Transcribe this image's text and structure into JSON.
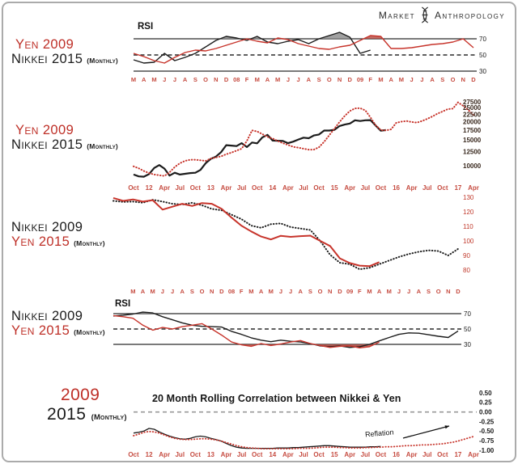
{
  "frame": {
    "background": "#FFFFFF",
    "border_color": "#ABABAB"
  },
  "logo": {
    "left": "Market",
    "right": "Anthropology",
    "icon": "dna-helix-icon"
  },
  "colors": {
    "red_text": "#BE2F27",
    "red_line": "#C7342B",
    "black_line": "#1C1C1C",
    "month_red": "#C64C41",
    "axis_dark": "#3A2A1F",
    "axis_black": "#1A1A1A",
    "axis_red": "#C0392B",
    "gray_fill": "#8A8A8A",
    "red_fill": "#B5483E",
    "zero_dash_gray": "#999999"
  },
  "chart_data": [
    {
      "id": "rsi-top",
      "type": "line",
      "title": "RSI",
      "legend": [
        {
          "text": "Yen 2009",
          "color": "red",
          "suffix": ""
        },
        {
          "text": "Nikkei 2015",
          "color": "black",
          "suffix": "(Monthly)"
        }
      ],
      "x_slots": 34,
      "label_every": 1,
      "label_offset": 0,
      "x_labels": [
        "M",
        "A",
        "M",
        "J",
        "J",
        "A",
        "S",
        "O",
        "N",
        "D",
        "08",
        "F",
        "M",
        "A",
        "M",
        "J",
        "J",
        "A",
        "S",
        "O",
        "N",
        "D",
        "09",
        "F",
        "M",
        "A",
        "M",
        "J",
        "J",
        "A",
        "S",
        "O",
        "N",
        "D"
      ],
      "y_ticks": [
        "70",
        "50",
        "30"
      ],
      "ylim": [
        25,
        80
      ],
      "grid": false,
      "legend_position": "left",
      "ref_lines": [
        {
          "value": 70,
          "style": "solid"
        },
        {
          "value": 50,
          "style": "dashed"
        },
        {
          "value": 30,
          "style": "solid"
        }
      ],
      "series": [
        {
          "name": "Nikkei 2015 RSI",
          "color_key": "black_line",
          "line": "solid",
          "values": [
            44,
            40,
            41,
            52,
            43,
            47,
            52,
            60,
            68,
            73,
            71,
            68,
            73,
            66,
            64,
            67,
            69,
            64,
            70,
            74,
            78,
            72,
            52,
            56
          ]
        },
        {
          "name": "Yen 2009 RSI",
          "color_key": "red_line",
          "line": "solid",
          "values": [
            52,
            48,
            43,
            40,
            47,
            53,
            56,
            55,
            58,
            62,
            66,
            70,
            67,
            65,
            71,
            69,
            64,
            61,
            58,
            57,
            60,
            62,
            68,
            74,
            73,
            58,
            58,
            59,
            61,
            63,
            64,
            66,
            70,
            59
          ]
        }
      ],
      "fills": [
        {
          "series": 0,
          "mode": "above",
          "at": 70,
          "color_key": "gray_fill"
        },
        {
          "series": 1,
          "mode": "above",
          "at": 70,
          "color_key": "red_fill"
        }
      ]
    },
    {
      "id": "price-overlay",
      "type": "line",
      "title": "",
      "legend": [
        {
          "text": "Yen 2009",
          "color": "red",
          "suffix": ""
        },
        {
          "text": "Nikkei 2015",
          "color": "black",
          "suffix": "(Monthly)"
        }
      ],
      "x_slots": 67,
      "label_every": 3,
      "label_offset": 0,
      "x_labels": [
        "Oct",
        "12",
        "Apr",
        "Jul",
        "Oct",
        "13",
        "Apr",
        "Jul",
        "Oct",
        "14",
        "Apr",
        "Jul",
        "Oct",
        "15",
        "Apr",
        "Jul",
        "Oct",
        "16",
        "Apr",
        "Jul",
        "Oct",
        "17",
        "Apr"
      ],
      "y_ticks": [
        "27500",
        "25000",
        "22500",
        "20000",
        "17500",
        "15000",
        "12500",
        "10000"
      ],
      "ylim": [
        8000,
        28500
      ],
      "y_scale": "log",
      "grid": false,
      "legend_position": "left",
      "ref_lines": [],
      "series": [
        {
          "name": "Nikkei 2015",
          "color_key": "black_line",
          "line": "solid",
          "values": [
            8700,
            8450,
            8400,
            8750,
            9650,
            10100,
            9550,
            8550,
            8950,
            8700,
            8800,
            8900,
            8950,
            9350,
            10400,
            11150,
            11550,
            12400,
            13850,
            13750,
            13650,
            14300,
            13450,
            14450,
            14250,
            15650,
            16300,
            14900,
            14850,
            14800,
            14300,
            14650,
            15150,
            15600,
            15450,
            16150,
            16400,
            17450,
            17450,
            17650,
            18750,
            19200,
            19500,
            20550,
            20300,
            20550,
            20600,
            18900,
            17400,
            17600
          ]
        },
        {
          "name": "Yen 2009 (rescaled)",
          "color_key": "red_line",
          "line": "dotted",
          "values": [
            9900,
            9600,
            9200,
            8900,
            8700,
            8600,
            8500,
            9000,
            9800,
            10400,
            10800,
            11000,
            11000,
            10900,
            10800,
            11200,
            11400,
            11600,
            12000,
            12300,
            12700,
            13100,
            14800,
            17500,
            17200,
            16500,
            15800,
            15400,
            14800,
            14300,
            13900,
            13500,
            13300,
            13100,
            12900,
            12900,
            13400,
            14600,
            16200,
            18000,
            20000,
            22000,
            23800,
            24800,
            24900,
            24000,
            21500,
            19000,
            17600,
            17500,
            17800,
            19700,
            20100,
            20300,
            20000,
            19800,
            20300,
            21000,
            21800,
            22800,
            23600,
            24500,
            24700,
            27300,
            25800,
            24200,
            22300
          ]
        }
      ],
      "fills": []
    },
    {
      "id": "fx-overlay",
      "type": "line",
      "title": "",
      "legend": [
        {
          "text": "Nikkei 2009",
          "color": "black",
          "suffix": ""
        },
        {
          "text": "Yen 2015",
          "color": "red",
          "suffix": "(Monthly)"
        }
      ],
      "x_slots": 36,
      "label_every": 1,
      "label_offset": 2,
      "x_labels": [
        "M",
        "A",
        "M",
        "J",
        "J",
        "A",
        "S",
        "O",
        "N",
        "D",
        "08",
        "F",
        "M",
        "A",
        "M",
        "J",
        "J",
        "A",
        "S",
        "O",
        "N",
        "D",
        "09",
        "F",
        "M",
        "A",
        "M",
        "J",
        "J",
        "A",
        "S",
        "O",
        "N",
        "D"
      ],
      "y_ticks": [
        "130",
        "120",
        "110",
        "100",
        "90",
        "80"
      ],
      "ylim": [
        78,
        132
      ],
      "grid": false,
      "legend_position": "left",
      "ref_lines": [],
      "series": [
        {
          "name": "Nikkei 2009 (rescaled)",
          "color_key": "black_line",
          "line": "dotted",
          "values": [
            127.5,
            126.8,
            127.0,
            126.2,
            128.3,
            127.0,
            125.5,
            125.0,
            126.2,
            124.5,
            122.0,
            121.0,
            118.0,
            115.0,
            110.5,
            109.0,
            111.5,
            112.0,
            109.5,
            108.5,
            107.5,
            100.0,
            90.5,
            85.0,
            84.0,
            80.5,
            81.5,
            84.0,
            86.5,
            89.0,
            91.0,
            92.5,
            93.5,
            93.0,
            90.0,
            94.5
          ]
        },
        {
          "name": "Yen 2015",
          "color_key": "red_line",
          "line": "solid",
          "values": [
            129.5,
            127.5,
            128.5,
            127.0,
            128.0,
            121.5,
            123.5,
            125.5,
            124.0,
            126.0,
            125.5,
            122.0,
            116.0,
            110.5,
            106.5,
            103.0,
            101.0,
            103.5,
            102.8,
            103.3,
            103.6,
            100.0,
            96.5,
            88.0,
            84.8,
            83.0,
            82.6,
            85.4
          ]
        }
      ],
      "fills": []
    },
    {
      "id": "rsi-bottom",
      "type": "line",
      "title": "RSI",
      "legend": [
        {
          "text": "Nikkei 2009",
          "color": "black",
          "suffix": ""
        },
        {
          "text": "Yen 2015",
          "color": "red",
          "suffix": "(Monthly)"
        }
      ],
      "x_slots": 36,
      "label_every": 1,
      "label_offset": 2,
      "x_labels": [],
      "y_ticks": [
        "70",
        "50",
        "30"
      ],
      "ylim": [
        22,
        75
      ],
      "grid": false,
      "legend_position": "left",
      "ref_lines": [
        {
          "value": 70,
          "style": "solid"
        },
        {
          "value": 50,
          "style": "dashed"
        },
        {
          "value": 30,
          "style": "solid"
        }
      ],
      "series": [
        {
          "name": "Nikkei 2009 RSI",
          "color_key": "black_line",
          "line": "solid",
          "values": [
            67,
            68,
            69.5,
            72,
            71,
            66,
            62,
            58,
            55,
            53.5,
            53,
            52.5,
            47,
            43,
            38.5,
            35.5,
            33.5,
            35.5,
            34,
            33,
            31,
            28,
            27,
            28,
            26,
            27,
            30,
            34.5,
            39,
            43,
            45,
            44.5,
            42.5,
            40.5,
            39,
            47.5
          ]
        },
        {
          "name": "Yen 2015 RSI",
          "color_key": "red_line",
          "line": "solid",
          "values": [
            67.5,
            66,
            64,
            55,
            48.5,
            52,
            50,
            53,
            55,
            57,
            50,
            42,
            33,
            29.5,
            27.5,
            31,
            28.5,
            30.5,
            33,
            35,
            31,
            28.5,
            26,
            27.5,
            28,
            25.5,
            27,
            33
          ]
        }
      ],
      "fills": [
        {
          "series": 0,
          "mode": "above",
          "at": 70,
          "color_key": "gray_fill"
        },
        {
          "series": 0,
          "mode": "below",
          "at": 30,
          "color_key": "gray_fill"
        },
        {
          "series": 1,
          "mode": "below",
          "at": 30,
          "color_key": "red_fill"
        }
      ]
    },
    {
      "id": "rolling-correlation",
      "type": "line",
      "title": "20 Month Rolling Correlation between Nikkei & Yen",
      "legend": [
        {
          "text": "2009",
          "color": "red",
          "suffix": ""
        },
        {
          "text": "2015",
          "color": "black",
          "suffix": "(Monthly)"
        }
      ],
      "x_slots": 67,
      "label_every": 3,
      "label_offset": 0,
      "x_labels": [
        "Oct",
        "12",
        "Apr",
        "Jul",
        "Oct",
        "13",
        "Apr",
        "Jul",
        "Oct",
        "14",
        "Apr",
        "Jul",
        "Oct",
        "15",
        "Apr",
        "Jul",
        "Oct",
        "16",
        "Apr",
        "Jul",
        "Oct",
        "17",
        "Apr"
      ],
      "y_ticks": [
        "0.50",
        "0.25",
        "0.00",
        "-0.25",
        "-0.50",
        "-0.75",
        "-1.00"
      ],
      "ylim": [
        -1.05,
        0.5
      ],
      "grid": false,
      "legend_position": "left",
      "ref_lines": [
        {
          "value": 0,
          "style": "dashed-gray"
        }
      ],
      "annotation": {
        "text": "Reflation",
        "arrow": true
      },
      "series": [
        {
          "name": "2015 correlation",
          "color_key": "black_line",
          "line": "solid",
          "values": [
            -0.55,
            -0.53,
            -0.5,
            -0.43,
            -0.45,
            -0.52,
            -0.58,
            -0.63,
            -0.67,
            -0.7,
            -0.71,
            -0.69,
            -0.65,
            -0.63,
            -0.65,
            -0.69,
            -0.72,
            -0.76,
            -0.82,
            -0.88,
            -0.92,
            -0.94,
            -0.95,
            -0.95,
            -0.95,
            -0.95,
            -0.95,
            -0.95,
            -0.94,
            -0.94,
            -0.94,
            -0.93,
            -0.93,
            -0.92,
            -0.91,
            -0.9,
            -0.89,
            -0.88,
            -0.88,
            -0.89,
            -0.9,
            -0.91,
            -0.92,
            -0.92,
            -0.92,
            -0.92,
            -0.91,
            -0.91,
            -0.9
          ]
        },
        {
          "name": "2009 correlation",
          "color_key": "red_line",
          "line": "dotted",
          "values": [
            -0.62,
            -0.58,
            -0.53,
            -0.51,
            -0.52,
            -0.55,
            -0.6,
            -0.65,
            -0.69,
            -0.71,
            -0.72,
            -0.72,
            -0.71,
            -0.7,
            -0.7,
            -0.71,
            -0.73,
            -0.76,
            -0.8,
            -0.84,
            -0.88,
            -0.91,
            -0.93,
            -0.94,
            -0.95,
            -0.96,
            -0.96,
            -0.96,
            -0.96,
            -0.96,
            -0.96,
            -0.96,
            -0.95,
            -0.95,
            -0.95,
            -0.94,
            -0.93,
            -0.92,
            -0.92,
            -0.92,
            -0.93,
            -0.93,
            -0.94,
            -0.94,
            -0.94,
            -0.93,
            -0.93,
            -0.92,
            -0.92,
            -0.91,
            -0.91,
            -0.9,
            -0.89,
            -0.88,
            -0.88,
            -0.87,
            -0.86,
            -0.86,
            -0.85,
            -0.84,
            -0.83,
            -0.81,
            -0.79,
            -0.76,
            -0.72,
            -0.68,
            -0.64
          ]
        }
      ]
    }
  ]
}
